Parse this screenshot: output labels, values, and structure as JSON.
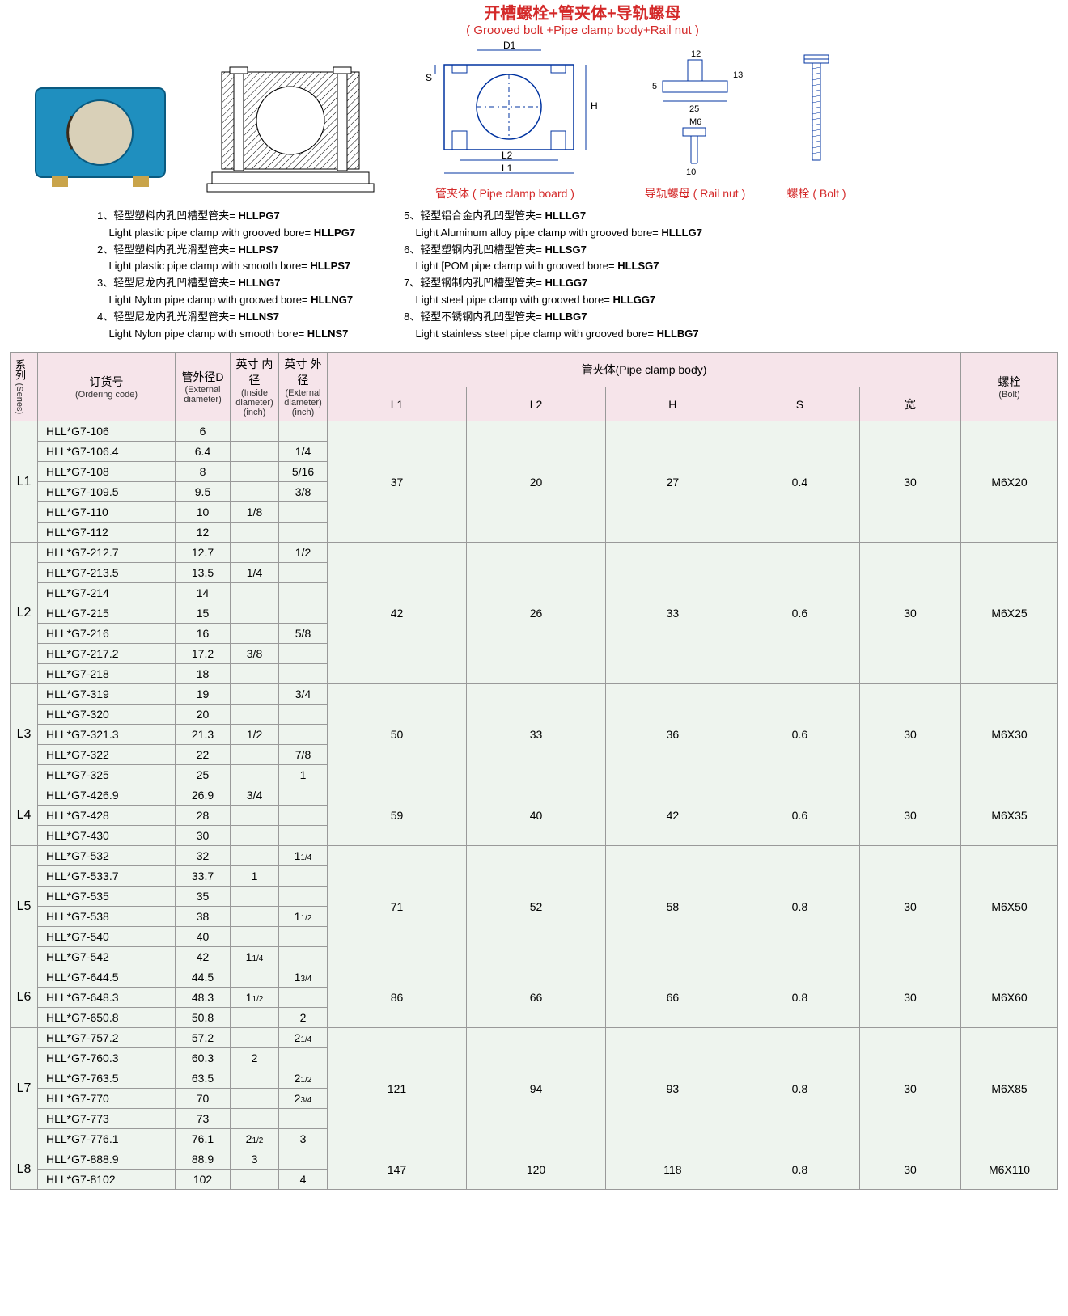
{
  "title": {
    "cn": "开槽螺栓+管夹体+导轨螺母",
    "en": "( Grooved bolt +Pipe clamp body+Rail nut )"
  },
  "diagram_labels": {
    "board_cn": "管夹体",
    "board_en": "( Pipe clamp board )",
    "railnut_cn": "导轨螺母",
    "railnut_en": "( Rail nut )",
    "bolt_cn": "螺栓",
    "bolt_en": "( Bolt )",
    "d1": "D1",
    "h": "H",
    "s": "S",
    "l1": "L1",
    "l2": "L2",
    "dim12": "12",
    "dim13": "13",
    "dim10": "10",
    "dim5": "5",
    "dim25": "25",
    "m6": "M6"
  },
  "legend": {
    "left": [
      {
        "n": "1、",
        "cn": "轻型塑料内孔凹槽型管夹=",
        "code": "HLLPG7",
        "en": "Light plastic pipe clamp with grooved bore=",
        "code2": "HLLPG7"
      },
      {
        "n": "2、",
        "cn": "轻型塑料内孔光滑型管夹=",
        "code": "HLLPS7",
        "en": "Light plastic pipe clamp with smooth bore=",
        "code2": "HLLPS7"
      },
      {
        "n": "3、",
        "cn": "轻型尼龙内孔凹槽型管夹=",
        "code": "HLLNG7",
        "en": "Light Nylon pipe clamp with grooved bore=",
        "code2": "HLLNG7"
      },
      {
        "n": "4、",
        "cn": "轻型尼龙内孔光滑型管夹=",
        "code": "HLLNS7",
        "en": "Light Nylon pipe clamp with smooth bore=",
        "code2": "HLLNS7"
      }
    ],
    "right": [
      {
        "n": "5、",
        "cn": "轻型铝合金内孔凹型管夹=",
        "code": "HLLLG7",
        "en": "Light Aluminum alloy pipe clamp with grooved bore=",
        "code2": "HLLLG7"
      },
      {
        "n": "6、",
        "cn": "轻型塑钢内孔凹槽型管夹=",
        "code": "HLLSG7",
        "en": "Light [POM pipe clamp with grooved bore=",
        "code2": "HLLSG7"
      },
      {
        "n": "7、",
        "cn": "轻型钢制内孔凹槽型管夹=",
        "code": "HLLGG7",
        "en": "Light steel pipe clamp with grooved bore=",
        "code2": "HLLGG7"
      },
      {
        "n": "8、",
        "cn": "轻型不锈钢内孔凹型管夹=",
        "code": "HLLBG7",
        "en": "Light stainless steel pipe clamp with grooved bore=",
        "code2": "HLLBG7"
      }
    ]
  },
  "headers": {
    "series": "系列",
    "series_en": "(Series)",
    "code": "订货号",
    "code_en": "(Ordering code)",
    "extD": "管外径D",
    "extD_en": "(External diameter)",
    "inInch": "英寸 内径",
    "inInch_en": "(Inside diameter) (inch)",
    "extInch": "英寸 外径",
    "extInch_en": "(External diameter) (inch)",
    "body": "管夹体(Pipe clamp body)",
    "L1": "L1",
    "L2": "L2",
    "H": "H",
    "S": "S",
    "W": "宽",
    "bolt": "螺栓",
    "bolt_en": "(Bolt)"
  },
  "groups": [
    {
      "series": "L1",
      "rows": [
        {
          "code": "HLL*G7-106",
          "d": "6",
          "in": "",
          "ex": ""
        },
        {
          "code": "HLL*G7-106.4",
          "d": "6.4",
          "in": "",
          "ex": "1/4"
        },
        {
          "code": "HLL*G7-108",
          "d": "8",
          "in": "",
          "ex": "5/16"
        },
        {
          "code": "HLL*G7-109.5",
          "d": "9.5",
          "in": "",
          "ex": "3/8"
        },
        {
          "code": "HLL*G7-110",
          "d": "10",
          "in": "1/8",
          "ex": ""
        },
        {
          "code": "HLL*G7-112",
          "d": "12",
          "in": "",
          "ex": ""
        }
      ],
      "body": {
        "L1": "37",
        "L2": "20",
        "H": "27",
        "S": "0.4",
        "W": "30"
      },
      "bolt": "M6X20"
    },
    {
      "series": "L2",
      "rows": [
        {
          "code": "HLL*G7-212.7",
          "d": "12.7",
          "in": "",
          "ex": "1/2"
        },
        {
          "code": "HLL*G7-213.5",
          "d": "13.5",
          "in": "1/4",
          "ex": ""
        },
        {
          "code": "HLL*G7-214",
          "d": "14",
          "in": "",
          "ex": ""
        },
        {
          "code": "HLL*G7-215",
          "d": "15",
          "in": "",
          "ex": ""
        },
        {
          "code": "HLL*G7-216",
          "d": "16",
          "in": "",
          "ex": "5/8"
        },
        {
          "code": "HLL*G7-217.2",
          "d": "17.2",
          "in": "3/8",
          "ex": ""
        },
        {
          "code": "HLL*G7-218",
          "d": "18",
          "in": "",
          "ex": ""
        }
      ],
      "body": {
        "L1": "42",
        "L2": "26",
        "H": "33",
        "S": "0.6",
        "W": "30"
      },
      "bolt": "M6X25"
    },
    {
      "series": "L3",
      "rows": [
        {
          "code": "HLL*G7-319",
          "d": "19",
          "in": "",
          "ex": "3/4"
        },
        {
          "code": "HLL*G7-320",
          "d": "20",
          "in": "",
          "ex": ""
        },
        {
          "code": "HLL*G7-321.3",
          "d": "21.3",
          "in": "1/2",
          "ex": ""
        },
        {
          "code": "HLL*G7-322",
          "d": "22",
          "in": "",
          "ex": "7/8"
        },
        {
          "code": "HLL*G7-325",
          "d": "25",
          "in": "",
          "ex": "1"
        }
      ],
      "body": {
        "L1": "50",
        "L2": "33",
        "H": "36",
        "S": "0.6",
        "W": "30"
      },
      "bolt": "M6X30"
    },
    {
      "series": "L4",
      "rows": [
        {
          "code": "HLL*G7-426.9",
          "d": "26.9",
          "in": "3/4",
          "ex": ""
        },
        {
          "code": "HLL*G7-428",
          "d": "28",
          "in": "",
          "ex": ""
        },
        {
          "code": "HLL*G7-430",
          "d": "30",
          "in": "",
          "ex": ""
        }
      ],
      "body": {
        "L1": "59",
        "L2": "40",
        "H": "42",
        "S": "0.6",
        "W": "30"
      },
      "bolt": "M6X35"
    },
    {
      "series": "L5",
      "rows": [
        {
          "code": "HLL*G7-532",
          "d": "32",
          "in": "",
          "ex": "1¼"
        },
        {
          "code": "HLL*G7-533.7",
          "d": "33.7",
          "in": "1",
          "ex": ""
        },
        {
          "code": "HLL*G7-535",
          "d": "35",
          "in": "",
          "ex": ""
        },
        {
          "code": "HLL*G7-538",
          "d": "38",
          "in": "",
          "ex": "1½"
        },
        {
          "code": "HLL*G7-540",
          "d": "40",
          "in": "",
          "ex": ""
        },
        {
          "code": "HLL*G7-542",
          "d": "42",
          "in": "1¼",
          "ex": ""
        }
      ],
      "body": {
        "L1": "71",
        "L2": "52",
        "H": "58",
        "S": "0.8",
        "W": "30"
      },
      "bolt": "M6X50"
    },
    {
      "series": "L6",
      "rows": [
        {
          "code": "HLL*G7-644.5",
          "d": "44.5",
          "in": "",
          "ex": "1¾"
        },
        {
          "code": "HLL*G7-648.3",
          "d": "48.3",
          "in": "1½",
          "ex": ""
        },
        {
          "code": "HLL*G7-650.8",
          "d": "50.8",
          "in": "",
          "ex": "2"
        }
      ],
      "body": {
        "L1": "86",
        "L2": "66",
        "H": "66",
        "S": "0.8",
        "W": "30"
      },
      "bolt": "M6X60"
    },
    {
      "series": "L7",
      "rows": [
        {
          "code": "HLL*G7-757.2",
          "d": "57.2",
          "in": "",
          "ex": "2¼"
        },
        {
          "code": "HLL*G7-760.3",
          "d": "60.3",
          "in": "2",
          "ex": ""
        },
        {
          "code": "HLL*G7-763.5",
          "d": "63.5",
          "in": "",
          "ex": "2½"
        },
        {
          "code": "HLL*G7-770",
          "d": "70",
          "in": "",
          "ex": "2¾"
        },
        {
          "code": "HLL*G7-773",
          "d": "73",
          "in": "",
          "ex": ""
        },
        {
          "code": "HLL*G7-776.1",
          "d": "76.1",
          "in": "2½",
          "ex": "3"
        }
      ],
      "body": {
        "L1": "121",
        "L2": "94",
        "H": "93",
        "S": "0.8",
        "W": "30"
      },
      "bolt": "M6X85"
    },
    {
      "series": "L8",
      "rows": [
        {
          "code": "HLL*G7-888.9",
          "d": "88.9",
          "in": "3",
          "ex": ""
        },
        {
          "code": "HLL*G7-8102",
          "d": "102",
          "in": "",
          "ex": "4"
        }
      ],
      "body": {
        "L1": "147",
        "L2": "120",
        "H": "118",
        "S": "0.8",
        "W": "30"
      },
      "bolt": "M6X110"
    }
  ],
  "colors": {
    "header_bg": "#f6e4ea",
    "data_bg": "#eef4ee",
    "border": "#999999",
    "red": "#d42a2a",
    "clamp_photo": "#1f8fbf",
    "brass": "#c9a44a",
    "diagram_blue": "#0033a0"
  }
}
